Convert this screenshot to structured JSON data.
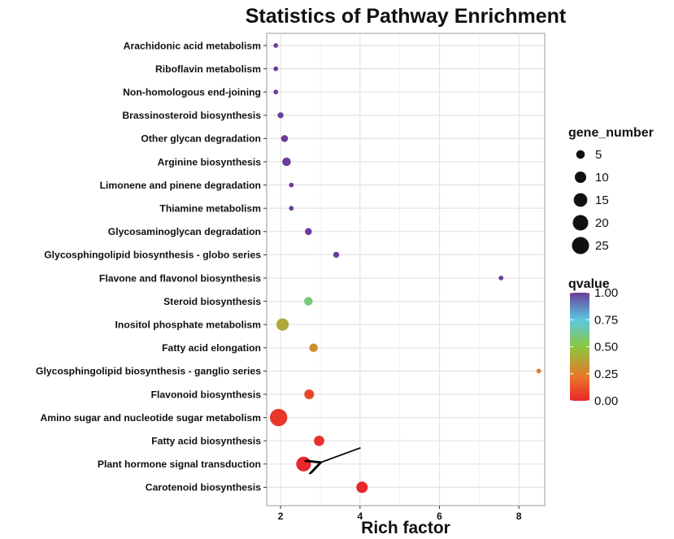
{
  "chart_data": {
    "type": "scatter",
    "title": "Statistics of Pathway Enrichment",
    "xlabel": "Rich factor",
    "ylabel": "",
    "x_ticks": [
      2,
      4,
      6,
      8
    ],
    "xlim": [
      1.65,
      8.65
    ],
    "grid": true,
    "points": [
      {
        "pathway": "Arachidonic acid metabolism",
        "rich_factor": 1.88,
        "gene_number": 1,
        "qvalue": 1.0
      },
      {
        "pathway": "Riboflavin metabolism",
        "rich_factor": 1.88,
        "gene_number": 1,
        "qvalue": 1.0
      },
      {
        "pathway": "Non-homologous end-joining",
        "rich_factor": 1.88,
        "gene_number": 1,
        "qvalue": 1.0
      },
      {
        "pathway": "Brassinosteroid biosynthesis",
        "rich_factor": 2.0,
        "gene_number": 2,
        "qvalue": 1.0
      },
      {
        "pathway": "Other glycan degradation",
        "rich_factor": 2.1,
        "gene_number": 3,
        "qvalue": 1.0
      },
      {
        "pathway": "Arginine biosynthesis",
        "rich_factor": 2.15,
        "gene_number": 5,
        "qvalue": 1.0
      },
      {
        "pathway": "Limonene and pinene degradation",
        "rich_factor": 2.27,
        "gene_number": 1,
        "qvalue": 1.0
      },
      {
        "pathway": "Thiamine metabolism",
        "rich_factor": 2.27,
        "gene_number": 1,
        "qvalue": 1.0
      },
      {
        "pathway": "Glycosaminoglycan degradation",
        "rich_factor": 2.7,
        "gene_number": 3,
        "qvalue": 1.0
      },
      {
        "pathway": "Glycosphingolipid biosynthesis - globo series",
        "rich_factor": 3.4,
        "gene_number": 2,
        "qvalue": 1.0
      },
      {
        "pathway": "Flavone and flavonol biosynthesis",
        "rich_factor": 7.55,
        "gene_number": 1,
        "qvalue": 1.0
      },
      {
        "pathway": "Steroid biosynthesis",
        "rich_factor": 2.7,
        "gene_number": 5,
        "qvalue": 0.6
      },
      {
        "pathway": "Inositol phosphate metabolism",
        "rich_factor": 2.05,
        "gene_number": 12,
        "qvalue": 0.4
      },
      {
        "pathway": "Fatty acid elongation",
        "rich_factor": 2.83,
        "gene_number": 5,
        "qvalue": 0.3
      },
      {
        "pathway": "Glycosphingolipid biosynthesis - ganglio series",
        "rich_factor": 8.5,
        "gene_number": 1,
        "qvalue": 0.25
      },
      {
        "pathway": "Flavonoid biosynthesis",
        "rich_factor": 2.72,
        "gene_number": 7,
        "qvalue": 0.09
      },
      {
        "pathway": "Amino sugar and nucleotide sugar metabolism",
        "rich_factor": 1.95,
        "gene_number": 26,
        "qvalue": 0.05
      },
      {
        "pathway": "Fatty acid biosynthesis",
        "rich_factor": 2.97,
        "gene_number": 8,
        "qvalue": 0.03
      },
      {
        "pathway": "Plant hormone signal transduction",
        "rich_factor": 2.58,
        "gene_number": 18,
        "qvalue": 0.0
      },
      {
        "pathway": "Carotenoid biosynthesis",
        "rich_factor": 4.05,
        "gene_number": 10,
        "qvalue": 0.0
      }
    ],
    "size_legend": {
      "title": "gene_number",
      "values": [
        5,
        10,
        15,
        20,
        25
      ]
    },
    "color_legend": {
      "title": "qvalue",
      "ticks": [
        1.0,
        0.75,
        0.5,
        0.25,
        0.0
      ],
      "tick_labels": [
        "1.00",
        "0.75",
        "0.50",
        "0.25",
        "0.00"
      ],
      "colors": [
        "#e8262b",
        "#e8762b",
        "#8cc63f",
        "#5bc8e0",
        "#6a3d9a"
      ]
    },
    "annotation": {
      "type": "arrow",
      "target": "Plant hormone signal transduction"
    }
  }
}
